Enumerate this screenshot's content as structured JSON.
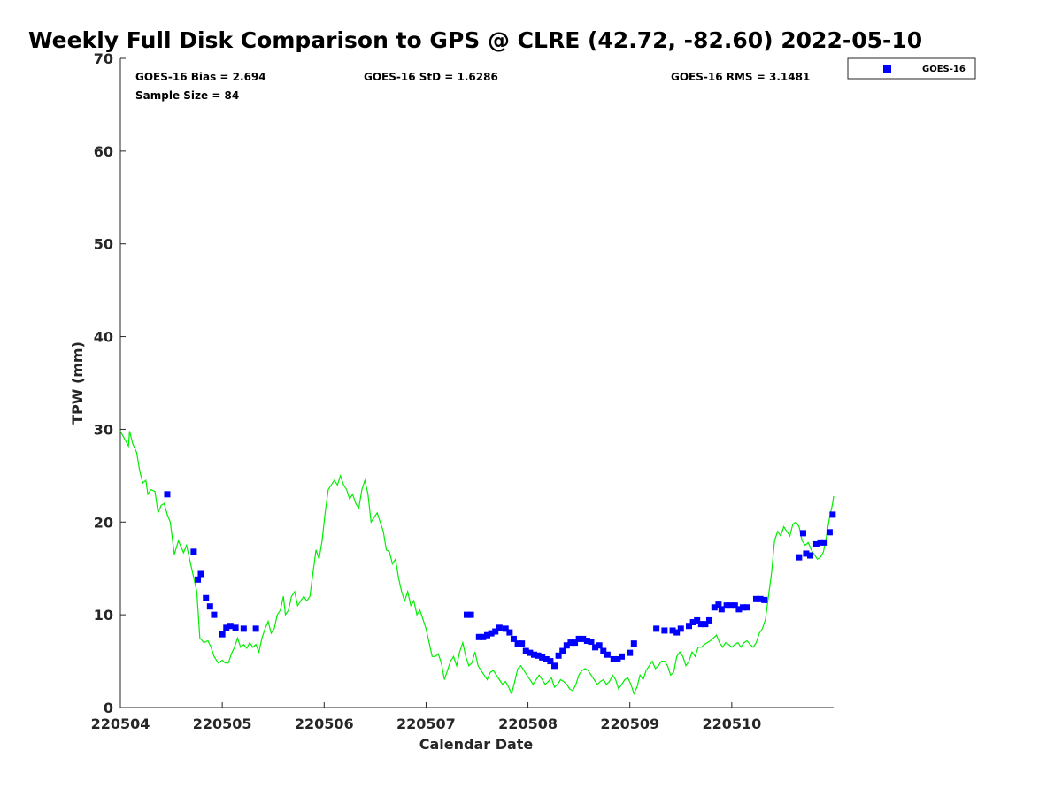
{
  "chart_data": {
    "type": "scatter",
    "title": "Weekly Full Disk Comparison to GPS @ CLRE (42.72, -82.60) 2022-05-10",
    "xlabel": "Calendar Date",
    "ylabel": "TPW (mm)",
    "x_ticks": [
      "220504",
      "220505",
      "220506",
      "220507",
      "220508",
      "220509",
      "220510"
    ],
    "xlim": [
      0,
      7.0
    ],
    "ylim": [
      0,
      70
    ],
    "y_ticks": [
      0,
      10,
      20,
      30,
      40,
      50,
      60,
      70
    ],
    "grid": false,
    "legend_position": "top-right outside",
    "stats": {
      "bias": "GOES-16 Bias = 2.694",
      "std": "GOES-16 StD = 1.6286",
      "rms": "GOES-16 RMS = 3.1481",
      "sample": "Sample Size = 84"
    },
    "series": [
      {
        "name": "GOES-16",
        "kind": "markers",
        "color": "#0000ff",
        "points": [
          [
            0.46,
            23.0
          ],
          [
            0.72,
            16.8
          ],
          [
            0.76,
            13.8
          ],
          [
            0.79,
            14.4
          ],
          [
            0.84,
            11.8
          ],
          [
            0.88,
            10.9
          ],
          [
            0.92,
            10.0
          ],
          [
            1.0,
            7.9
          ],
          [
            1.04,
            8.6
          ],
          [
            1.08,
            8.8
          ],
          [
            1.13,
            8.6
          ],
          [
            1.21,
            8.5
          ],
          [
            1.33,
            8.5
          ],
          [
            3.4,
            10.0
          ],
          [
            3.44,
            10.0
          ],
          [
            3.52,
            7.6
          ],
          [
            3.56,
            7.6
          ],
          [
            3.6,
            7.8
          ],
          [
            3.64,
            8.0
          ],
          [
            3.68,
            8.2
          ],
          [
            3.72,
            8.6
          ],
          [
            3.78,
            8.5
          ],
          [
            3.82,
            8.1
          ],
          [
            3.86,
            7.4
          ],
          [
            3.9,
            6.9
          ],
          [
            3.94,
            6.9
          ],
          [
            3.98,
            6.1
          ],
          [
            4.02,
            5.9
          ],
          [
            4.06,
            5.7
          ],
          [
            4.1,
            5.6
          ],
          [
            4.14,
            5.4
          ],
          [
            4.18,
            5.2
          ],
          [
            4.22,
            5.0
          ],
          [
            4.26,
            4.5
          ],
          [
            4.3,
            5.6
          ],
          [
            4.34,
            6.1
          ],
          [
            4.38,
            6.7
          ],
          [
            4.42,
            7.0
          ],
          [
            4.46,
            7.0
          ],
          [
            4.5,
            7.4
          ],
          [
            4.54,
            7.4
          ],
          [
            4.58,
            7.2
          ],
          [
            4.62,
            7.1
          ],
          [
            4.66,
            6.5
          ],
          [
            4.7,
            6.7
          ],
          [
            4.74,
            6.1
          ],
          [
            4.78,
            5.7
          ],
          [
            4.84,
            5.2
          ],
          [
            4.88,
            5.2
          ],
          [
            4.92,
            5.5
          ],
          [
            5.0,
            5.9
          ],
          [
            5.04,
            6.9
          ],
          [
            5.26,
            8.5
          ],
          [
            5.34,
            8.3
          ],
          [
            5.42,
            8.3
          ],
          [
            5.46,
            8.1
          ],
          [
            5.5,
            8.5
          ],
          [
            5.58,
            8.8
          ],
          [
            5.62,
            9.2
          ],
          [
            5.66,
            9.4
          ],
          [
            5.7,
            9.0
          ],
          [
            5.74,
            9.0
          ],
          [
            5.78,
            9.4
          ],
          [
            5.83,
            10.8
          ],
          [
            5.87,
            11.1
          ],
          [
            5.9,
            10.6
          ],
          [
            5.95,
            11.0
          ],
          [
            5.99,
            11.0
          ],
          [
            6.03,
            11.0
          ],
          [
            6.07,
            10.6
          ],
          [
            6.11,
            10.8
          ],
          [
            6.15,
            10.8
          ],
          [
            6.24,
            11.7
          ],
          [
            6.28,
            11.7
          ],
          [
            6.32,
            11.6
          ],
          [
            6.66,
            16.2
          ],
          [
            6.7,
            18.8
          ],
          [
            6.73,
            16.6
          ],
          [
            6.77,
            16.4
          ],
          [
            6.83,
            17.6
          ],
          [
            6.87,
            17.8
          ],
          [
            6.91,
            17.8
          ],
          [
            6.96,
            18.9
          ],
          [
            6.99,
            20.8
          ]
        ]
      },
      {
        "name": "",
        "kind": "line",
        "color": "#00ee00",
        "points": [
          [
            0.0,
            29.8
          ],
          [
            0.04,
            29.0
          ],
          [
            0.08,
            28.2
          ],
          [
            0.09,
            29.8
          ],
          [
            0.12,
            28.5
          ],
          [
            0.16,
            27.5
          ],
          [
            0.19,
            25.5
          ],
          [
            0.22,
            24.2
          ],
          [
            0.25,
            24.5
          ],
          [
            0.27,
            23.0
          ],
          [
            0.3,
            23.5
          ],
          [
            0.34,
            23.3
          ],
          [
            0.37,
            21.0
          ],
          [
            0.4,
            21.8
          ],
          [
            0.43,
            22.0
          ],
          [
            0.46,
            20.8
          ],
          [
            0.49,
            20.0
          ],
          [
            0.53,
            16.5
          ],
          [
            0.57,
            18.0
          ],
          [
            0.6,
            17.2
          ],
          [
            0.62,
            16.7
          ],
          [
            0.65,
            17.5
          ],
          [
            0.69,
            15.5
          ],
          [
            0.72,
            14.0
          ],
          [
            0.75,
            12.5
          ],
          [
            0.78,
            7.5
          ],
          [
            0.82,
            7.0
          ],
          [
            0.86,
            7.2
          ],
          [
            0.89,
            6.5
          ],
          [
            0.92,
            5.5
          ],
          [
            0.96,
            4.8
          ],
          [
            1.0,
            5.1
          ],
          [
            1.03,
            4.8
          ],
          [
            1.06,
            4.8
          ],
          [
            1.09,
            5.8
          ],
          [
            1.12,
            6.5
          ],
          [
            1.15,
            7.5
          ],
          [
            1.18,
            6.5
          ],
          [
            1.21,
            6.8
          ],
          [
            1.24,
            6.4
          ],
          [
            1.27,
            7.0
          ],
          [
            1.3,
            6.5
          ],
          [
            1.33,
            6.8
          ],
          [
            1.36,
            6.0
          ],
          [
            1.39,
            7.5
          ],
          [
            1.42,
            8.5
          ],
          [
            1.45,
            9.3
          ],
          [
            1.48,
            8.0
          ],
          [
            1.51,
            8.5
          ],
          [
            1.54,
            10.0
          ],
          [
            1.57,
            10.5
          ],
          [
            1.6,
            12.0
          ],
          [
            1.62,
            10.0
          ],
          [
            1.65,
            10.5
          ],
          [
            1.68,
            12.0
          ],
          [
            1.71,
            12.5
          ],
          [
            1.74,
            11.0
          ],
          [
            1.77,
            11.5
          ],
          [
            1.8,
            12.0
          ],
          [
            1.83,
            11.5
          ],
          [
            1.86,
            12.0
          ],
          [
            1.89,
            14.5
          ],
          [
            1.92,
            17.0
          ],
          [
            1.95,
            16.0
          ],
          [
            1.98,
            18.0
          ],
          [
            2.01,
            21.0
          ],
          [
            2.04,
            23.5
          ],
          [
            2.07,
            24.0
          ],
          [
            2.1,
            24.5
          ],
          [
            2.13,
            24.0
          ],
          [
            2.16,
            25.0
          ],
          [
            2.19,
            24.0
          ],
          [
            2.22,
            23.5
          ],
          [
            2.25,
            22.5
          ],
          [
            2.28,
            23.0
          ],
          [
            2.31,
            22.0
          ],
          [
            2.34,
            21.5
          ],
          [
            2.37,
            23.5
          ],
          [
            2.4,
            24.5
          ],
          [
            2.43,
            23.0
          ],
          [
            2.46,
            20.0
          ],
          [
            2.49,
            20.5
          ],
          [
            2.52,
            21.0
          ],
          [
            2.55,
            20.0
          ],
          [
            2.58,
            19.0
          ],
          [
            2.61,
            17.0
          ],
          [
            2.64,
            16.8
          ],
          [
            2.67,
            15.5
          ],
          [
            2.7,
            16.0
          ],
          [
            2.73,
            14.0
          ],
          [
            2.76,
            12.5
          ],
          [
            2.79,
            11.5
          ],
          [
            2.82,
            12.5
          ],
          [
            2.85,
            11.0
          ],
          [
            2.88,
            11.5
          ],
          [
            2.91,
            10.0
          ],
          [
            2.94,
            10.5
          ],
          [
            2.97,
            9.5
          ],
          [
            3.0,
            8.5
          ],
          [
            3.03,
            7.0
          ],
          [
            3.06,
            5.5
          ],
          [
            3.09,
            5.5
          ],
          [
            3.12,
            5.8
          ],
          [
            3.15,
            4.8
          ],
          [
            3.18,
            3.0
          ],
          [
            3.21,
            4.0
          ],
          [
            3.24,
            5.0
          ],
          [
            3.27,
            5.5
          ],
          [
            3.3,
            4.5
          ],
          [
            3.33,
            6.0
          ],
          [
            3.36,
            7.0
          ],
          [
            3.39,
            5.5
          ],
          [
            3.42,
            4.5
          ],
          [
            3.45,
            4.8
          ],
          [
            3.48,
            6.0
          ],
          [
            3.51,
            4.5
          ],
          [
            3.54,
            4.0
          ],
          [
            3.57,
            3.5
          ],
          [
            3.6,
            3.0
          ],
          [
            3.63,
            3.8
          ],
          [
            3.66,
            4.0
          ],
          [
            3.69,
            3.5
          ],
          [
            3.72,
            3.0
          ],
          [
            3.75,
            2.5
          ],
          [
            3.78,
            2.8
          ],
          [
            3.81,
            2.2
          ],
          [
            3.84,
            1.5
          ],
          [
            3.87,
            2.8
          ],
          [
            3.9,
            4.2
          ],
          [
            3.93,
            4.5
          ],
          [
            3.96,
            4.0
          ],
          [
            3.99,
            3.5
          ],
          [
            4.02,
            3.0
          ],
          [
            4.05,
            2.5
          ],
          [
            4.08,
            3.0
          ],
          [
            4.11,
            3.5
          ],
          [
            4.14,
            3.0
          ],
          [
            4.17,
            2.5
          ],
          [
            4.2,
            2.8
          ],
          [
            4.23,
            3.2
          ],
          [
            4.26,
            2.2
          ],
          [
            4.29,
            2.5
          ],
          [
            4.32,
            3.0
          ],
          [
            4.35,
            2.8
          ],
          [
            4.38,
            2.5
          ],
          [
            4.41,
            2.0
          ],
          [
            4.44,
            1.8
          ],
          [
            4.47,
            2.5
          ],
          [
            4.5,
            3.5
          ],
          [
            4.53,
            4.0
          ],
          [
            4.56,
            4.2
          ],
          [
            4.59,
            4.0
          ],
          [
            4.62,
            3.5
          ],
          [
            4.65,
            3.0
          ],
          [
            4.68,
            2.5
          ],
          [
            4.71,
            2.8
          ],
          [
            4.74,
            3.0
          ],
          [
            4.77,
            2.5
          ],
          [
            4.8,
            2.8
          ],
          [
            4.83,
            3.5
          ],
          [
            4.86,
            3.0
          ],
          [
            4.89,
            2.0
          ],
          [
            4.92,
            2.5
          ],
          [
            4.95,
            3.0
          ],
          [
            4.98,
            3.2
          ],
          [
            5.01,
            2.5
          ],
          [
            5.04,
            1.5
          ],
          [
            5.07,
            2.2
          ],
          [
            5.1,
            3.5
          ],
          [
            5.13,
            3.0
          ],
          [
            5.16,
            4.0
          ],
          [
            5.19,
            4.5
          ],
          [
            5.22,
            5.0
          ],
          [
            5.25,
            4.2
          ],
          [
            5.28,
            4.5
          ],
          [
            5.31,
            5.0
          ],
          [
            5.34,
            5.0
          ],
          [
            5.37,
            4.5
          ],
          [
            5.4,
            3.5
          ],
          [
            5.43,
            3.8
          ],
          [
            5.46,
            5.5
          ],
          [
            5.49,
            6.0
          ],
          [
            5.52,
            5.5
          ],
          [
            5.55,
            4.5
          ],
          [
            5.58,
            5.0
          ],
          [
            5.61,
            6.0
          ],
          [
            5.64,
            5.5
          ],
          [
            5.67,
            6.5
          ],
          [
            5.7,
            6.5
          ],
          [
            5.73,
            6.8
          ],
          [
            5.76,
            7.0
          ],
          [
            5.79,
            7.2
          ],
          [
            5.82,
            7.5
          ],
          [
            5.85,
            7.8
          ],
          [
            5.88,
            7.0
          ],
          [
            5.91,
            6.5
          ],
          [
            5.94,
            7.0
          ],
          [
            5.97,
            6.8
          ],
          [
            6.0,
            6.5
          ],
          [
            6.03,
            6.8
          ],
          [
            6.06,
            7.0
          ],
          [
            6.09,
            6.5
          ],
          [
            6.12,
            7.0
          ],
          [
            6.15,
            7.2
          ],
          [
            6.18,
            6.8
          ],
          [
            6.21,
            6.5
          ],
          [
            6.24,
            7.0
          ],
          [
            6.27,
            8.0
          ],
          [
            6.3,
            8.5
          ],
          [
            6.33,
            9.5
          ],
          [
            6.36,
            12.0
          ],
          [
            6.39,
            14.5
          ],
          [
            6.42,
            18.0
          ],
          [
            6.45,
            19.0
          ],
          [
            6.48,
            18.5
          ],
          [
            6.51,
            19.5
          ],
          [
            6.54,
            19.0
          ],
          [
            6.57,
            18.5
          ],
          [
            6.6,
            19.8
          ],
          [
            6.63,
            20.0
          ],
          [
            6.66,
            19.5
          ],
          [
            6.69,
            18.0
          ],
          [
            6.72,
            17.5
          ],
          [
            6.75,
            17.8
          ],
          [
            6.78,
            17.0
          ],
          [
            6.81,
            16.5
          ],
          [
            6.84,
            16.0
          ],
          [
            6.87,
            16.2
          ],
          [
            6.9,
            16.8
          ],
          [
            6.93,
            18.5
          ],
          [
            6.96,
            20.5
          ],
          [
            6.99,
            22.0
          ],
          [
            7.0,
            22.8
          ]
        ]
      }
    ]
  }
}
